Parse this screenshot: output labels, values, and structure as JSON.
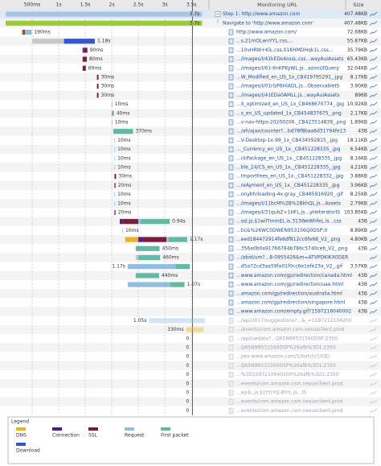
{
  "axis": {
    "xlim": [
      0,
      3.8
    ],
    "xticks": [
      {
        "value": 0.5,
        "label": "500ms"
      },
      {
        "value": 1,
        "label": "1s"
      },
      {
        "value": 1.5,
        "label": "1.5s"
      },
      {
        "value": 2,
        "label": "2s"
      },
      {
        "value": 2.5,
        "label": "2.5s"
      },
      {
        "value": 3,
        "label": "3s"
      },
      {
        "value": 3.5,
        "label": "3.5s"
      }
    ],
    "marker": 3.52,
    "marker_color": "#4d7a2a"
  },
  "headers": {
    "url": "Monitoring URL",
    "size": "Size"
  },
  "blocked_color": "#c8c8c8",
  "phases": [
    {
      "key": "dns",
      "label": "DNS",
      "color": "#e8b424"
    },
    {
      "key": "connection",
      "label": "Connection",
      "color": "#4b1e8e"
    },
    {
      "key": "ssl",
      "label": "SSL",
      "color": "#7b1c3c"
    },
    {
      "key": "request",
      "label": "Request",
      "color": "#92bde2"
    },
    {
      "key": "first_packet",
      "label": "First packet",
      "color": "#62b9a5"
    },
    {
      "key": "download",
      "label": "Download",
      "color": "#3756c9"
    }
  ],
  "legend": {
    "title": "Legend"
  },
  "rows": [
    {
      "url": "Step 1: http://www.amazon.com",
      "size": "407.48KB",
      "kind": "step",
      "bar": {
        "start": 0,
        "span": 3.7,
        "color": "#a8c6e4"
      },
      "label": "3.7s"
    },
    {
      "url": "Navigate to 'http://www.amazon.com'",
      "size": "407.48KB",
      "kind": "navigate",
      "bar": {
        "start": 0,
        "span": 3.7,
        "color": "#9bcb3b"
      },
      "label": "3.7s"
    },
    {
      "url": "http://www.amazon.com/",
      "size": "72.68KB",
      "kind": "request",
      "bar": {
        "start": 0.3,
        "dns": 0.03,
        "connection": 0.01,
        "ssl": 0.02,
        "request": 0.13
      },
      "label": "190ms"
    },
    {
      "url": "...s,21mOLwnYYL.css,...",
      "size": "55.87KB",
      "kind": "request",
      "bar": {
        "start": 0.5,
        "blocked": 0.6,
        "download": 0.58
      },
      "label": "1.18s"
    },
    {
      "url": "...10vHRW+KiL.css,01KHMDHqk1L.css...",
      "size": "35.79KB",
      "kind": "request",
      "bar": {
        "start": 1.45,
        "connection": 0.03,
        "ssl": 0.06
      },
      "label": "90ms"
    },
    {
      "url": ".../images/I/41kEDs4ossL.css...wayAuiAssets",
      "size": "65.43KB",
      "kind": "request",
      "bar": {
        "start": 1.45,
        "ssl": 0.08
      },
      "label": "80ms"
    },
    {
      "url": ".../images/I/61-6nKPKyWL.js...azonUIQuery",
      "size": "32.04KB",
      "kind": "request",
      "bar": {
        "start": 1.45,
        "ssl": 0.06
      },
      "label": "60ms"
    },
    {
      "url": "...W_Modified_en_US_1x_CB419795291_.jpg",
      "size": "8.17KB",
      "kind": "request",
      "bar": {
        "start": 1.72,
        "ssl": 0.03
      },
      "label": "30ms"
    },
    {
      "url": ".../images/I/01rGP6HIADL.js...ObservableIS",
      "size": "3.90KB",
      "kind": "request",
      "bar": {
        "start": 1.72,
        "ssl": 0.03
      },
      "label": "30ms"
    },
    {
      "url": ".../images/I/41EDa0AMLL.js...wayAuiAssets",
      "size": "896B",
      "kind": "request",
      "bar": {
        "start": 1.72,
        "ssl": 0.03
      },
      "label": "30ms"
    },
    {
      "url": "...S_optimized_en_US_1x_CB468670774_.jpg",
      "size": "10.92KB",
      "kind": "request",
      "bar": {
        "start": 2.0,
        "request": 0.01
      },
      "label": "10ms"
    },
    {
      "url": "...s_en_US_updated_1x_CB454837675_.png",
      "size": "2.17KB",
      "kind": "request",
      "bar": {
        "start": 2.0,
        "first_packet": 0.04
      },
      "label": "40ms"
    },
    {
      "url": "...v-nav-https-20200206._CB423514839_.png",
      "size": "1.89KB",
      "kind": "request",
      "bar": {
        "start": 2.0,
        "request": 0.01
      },
      "label": "10ms"
    },
    {
      "url": ".../ah/ajax/counter?...bd78f8baa6d31794fe13",
      "size": "43B",
      "kind": "request",
      "bar": {
        "start": 2.03,
        "first_packet": 0.37
      },
      "label": "370ms"
    },
    {
      "url": "...V-Desktop-1x-99_1x_CB434592815_.jpg",
      "size": "18.11KB",
      "kind": "request",
      "bar": {
        "start": 2.05,
        "request": 0.01
      },
      "label": "10ms"
    },
    {
      "url": "..._Currency_en_US_1x._CB451228335_.jpg",
      "size": "6.54KB",
      "kind": "request",
      "bar": {
        "start": 2.05,
        "request": 0.01
      },
      "label": "10ms"
    },
    {
      "url": "...ckPackage_en_US_1x._CB451228335_.jpg",
      "size": "8.16KB",
      "kind": "request",
      "bar": {
        "start": 2.05,
        "request": 0.01
      },
      "label": "10ms"
    },
    {
      "url": "...ble_24/CS_en_US_1x._CB451228335_.jpg",
      "size": "4.21KB",
      "kind": "request",
      "bar": {
        "start": 2.05,
        "request": 0.01
      },
      "label": "10ms"
    },
    {
      "url": "...ImportFees_en_US_1x._CB451228332_.jpg",
      "size": "3.88KB",
      "kind": "request",
      "bar": {
        "start": 2.05,
        "ssl": 0.03
      },
      "label": "30ms"
    },
    {
      "url": "...reAyment_en_US_1x._CB451228335_.jpg",
      "size": "3.96KB",
      "kind": "request",
      "bar": {
        "start": 2.05,
        "ssl": 0.02
      },
      "label": "20ms"
    },
    {
      "url": "...onybh/loading-4x-gray._CB485916920_.gif",
      "size": "8.25KB",
      "kind": "request",
      "bar": {
        "start": 2.05,
        "request": 0.01
      },
      "label": "10ms"
    },
    {
      "url": ".../images/I/11bcM%2B%2BkhQL.js...Assets",
      "size": "2.79KB",
      "kind": "request",
      "bar": {
        "start": 2.05,
        "request": 0.01
      },
      "label": "10ms"
    },
    {
      "url": ".../images/I/31qubZ+1HFL.js...yHeteratorIS",
      "size": "103.85KB",
      "kind": "request",
      "bar": {
        "start": 2.05,
        "ssl": 0.02
      },
      "label": "20ms"
    },
    {
      "url": "...ssl.js.$1wilTmmEL.is.313WeWhfeL.is...css",
      "size": "43B",
      "kind": "request",
      "bar": {
        "start": 2.15,
        "connection": 0.05,
        "ssl": 0.3,
        "request": 0.04,
        "first_packet": 0.55
      },
      "label": "0.94s"
    },
    {
      "url": "...tic&%26WC0DWEN953156Q0DSP:0",
      "size": "8.89KB",
      "kind": "request",
      "bar": {
        "start": 2.2,
        "request": 0.01
      },
      "label": "10ms"
    },
    {
      "url": "...eed184472914fe6df812cc6fe68_V2_.png",
      "size": "4.80KB",
      "kind": "request",
      "bar": {
        "start": 2.25,
        "dns": 0.25,
        "connection": 0.08,
        "ssl": 0.45,
        "request": 0.04,
        "first_packet": 0.35
      },
      "label": "1.17s"
    },
    {
      "url": "...356a0b0a91766784b786c5740ceb_V2_.png",
      "size": "43B",
      "kind": "request",
      "bar": {
        "start": 2.45,
        "first_packet": 0.45
      },
      "label": "450ms"
    },
    {
      "url": ".../abid/um?...8-0955426&m=ATVPDKIKX0DER",
      "kind": "request",
      "bar": {
        "start": 2.45,
        "blocked": 0.05,
        "first_packet": 0.41
      },
      "label": "460ms"
    },
    {
      "url": "...d5a72cd3aa59fa01f0cc6e1efe23a_V2_.gif",
      "size": "3.57KB",
      "kind": "request",
      "bar": {
        "start": 2.3,
        "request": 0.9,
        "first_packet": 0.27
      },
      "label": "1.17s"
    },
    {
      "url": "...www.amazon.com/gp/redirection/canada.html",
      "size": "43B",
      "kind": "request",
      "bar": {
        "start": 2.45,
        "first_packet": 0.44
      },
      "label": "440ms"
    },
    {
      "url": "...www.amazon.com/gp/redirection/uae.html",
      "size": "43B",
      "kind": "request",
      "bar": {
        "start": 2.3,
        "request": 0.8,
        "first_packet": 0.27
      },
      "label": "1.07s"
    },
    {
      "url": "...amazon.com/gp/redirection/australia.html",
      "size": "43B",
      "kind": "request"
    },
    {
      "url": "...amazon.com/gp/redirection/singapore.html",
      "size": "43B",
      "kind": "request"
    },
    {
      "url": "...www.amazon.com/empty.gif?1597216040002",
      "size": "43B",
      "kind": "request"
    },
    {
      "url": ".../api/2017/suggestions?...&_=1597212104200",
      "kind": "failed",
      "bar": {
        "start": 2.7,
        "request": 1.05
      },
      "label": "1.05s"
    },
    {
      "url": ".../events/com.amazon.csm.nexusclient.prod",
      "kind": "failed",
      "bar": {
        "start": 3.4,
        "dns": 0.33
      },
      "label": "330ms"
    },
    {
      "url": ".../api/uedata?...Q65N9R531560DSP:2350",
      "kind": "failed",
      "bar": {
        "start": 3.5
      },
      "label": "0"
    },
    {
      "url": "...Q65N9R531560DSP%26afb%3D1:2350",
      "kind": "failed",
      "bar": {
        "start": 3.5
      },
      "label": "0"
    },
    {
      "url": "...pes-www.amazon.com/1/batch/1/OE/",
      "kind": "failed",
      "bar": {
        "start": 3.5
      },
      "label": "0"
    },
    {
      "url": "...Q65N9R531560DSP%26afb%3D1:2350",
      "kind": "failed",
      "bar": {
        "start": 3.5
      },
      "label": "0"
    },
    {
      "url": "...%3D1597210640100%26afb%3D1:2350",
      "kind": "failed",
      "bar": {
        "start": 3.5
      },
      "label": "0"
    },
    {
      "url": "...events/com.amazon.csm.nexusclient.prod",
      "kind": "failed",
      "bar": {
        "start": 3.5
      },
      "label": "0"
    },
    {
      "url": "...ep4L.js.$1tYrYQ-8YrL.js...IS",
      "kind": "failed",
      "bar": {
        "start": 3.5
      },
      "label": "0"
    },
    {
      "url": "...events/com.amazon.csm.nexusclient.prod",
      "kind": "failed",
      "bar": {
        "start": 3.5
      },
      "label": "0"
    },
    {
      "url": "...events/com.amazon.csm.nexusclient.prod",
      "kind": "failed",
      "bar": {
        "start": 3.5
      },
      "label": "0"
    }
  ]
}
